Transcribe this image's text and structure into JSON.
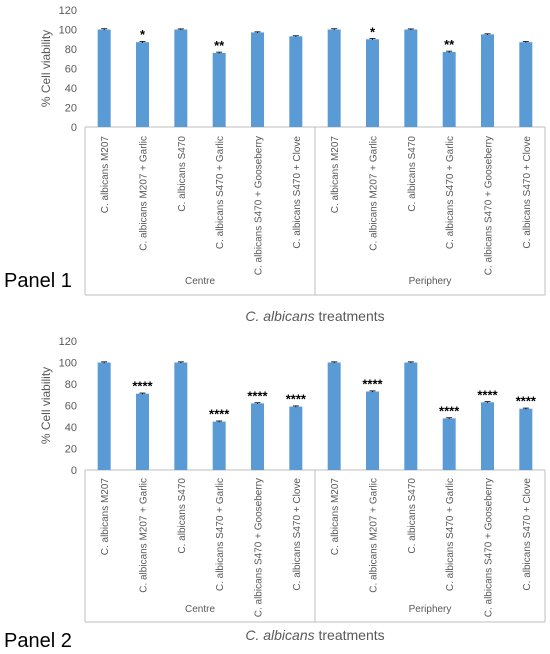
{
  "colors": {
    "bar": "#5b9bd5",
    "bar_edge": "#2e75b6",
    "axis": "#bfbfbf",
    "text": "#595959",
    "panel_text": "#000000",
    "sig_text": "#000000"
  },
  "chart_data": [
    {
      "type": "bar",
      "panel_label": "Panel 1",
      "xlabel_italic": "C. albicans",
      "xlabel_rest": " treatments",
      "ylabel": "% Cell viability",
      "ylim": [
        0,
        120
      ],
      "yticks": [
        "0",
        "20",
        "40",
        "60",
        "80",
        "100",
        "120"
      ],
      "groups": [
        "Centre",
        "Periphery"
      ],
      "categories": [
        "C. albicans M207",
        "C. albicans M207 + Garlic",
        "C. albicans S470",
        "C. albicans S470 + Garlic",
        "C. albicans S470 + Gooseberry",
        "C. albicans S470 + Clove"
      ],
      "series": [
        {
          "group": "Centre",
          "values": [
            100,
            87,
            100,
            76,
            97,
            93
          ],
          "errors": [
            0.8,
            0.8,
            0.6,
            0.8,
            0.6,
            0.6
          ],
          "significance": [
            "",
            "*",
            "",
            "**",
            "",
            ""
          ]
        },
        {
          "group": "Periphery",
          "values": [
            100,
            90,
            100,
            77,
            95,
            87
          ],
          "errors": [
            0.8,
            0.8,
            0.6,
            0.8,
            0.6,
            0.6
          ],
          "significance": [
            "",
            "*",
            "",
            "**",
            "",
            ""
          ]
        }
      ]
    },
    {
      "type": "bar",
      "panel_label": "Panel 2",
      "xlabel_italic": "C. albicans",
      "xlabel_rest": " treatments",
      "ylabel": "% Cell viability",
      "ylim": [
        0,
        120
      ],
      "yticks": [
        "0",
        "20",
        "40",
        "60",
        "80",
        "100",
        "120"
      ],
      "groups": [
        "Centre",
        "Periphery"
      ],
      "categories": [
        "C. albicans M207",
        "C. albicans M207 + Garlic",
        "C. albicans S470",
        "C. albicans S470 + Garlic",
        "C. albicans S470 + Gooseberry",
        "C. albicans S470 + Clove"
      ],
      "series": [
        {
          "group": "Centre",
          "values": [
            100,
            71,
            100,
            45,
            62,
            59
          ],
          "errors": [
            0.6,
            0.6,
            0.6,
            0.6,
            0.6,
            0.6
          ],
          "significance": [
            "",
            "****",
            "",
            "****",
            "****",
            "****"
          ]
        },
        {
          "group": "Periphery",
          "values": [
            100,
            73,
            100,
            48,
            63,
            57
          ],
          "errors": [
            0.6,
            0.6,
            0.6,
            0.6,
            0.6,
            0.6
          ],
          "significance": [
            "",
            "****",
            "",
            "****",
            "****",
            "****"
          ]
        }
      ]
    }
  ]
}
